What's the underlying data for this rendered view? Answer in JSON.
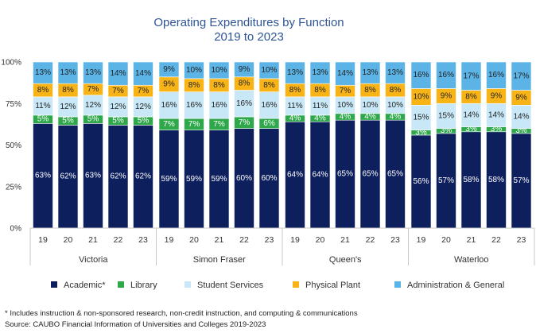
{
  "chart_data": {
    "type": "bar",
    "stacked": true,
    "title": "Operating Expenditures by Function",
    "subtitle": "2019 to 2023",
    "ylim": [
      0,
      100
    ],
    "yticks": [
      "0%",
      "25%",
      "50%",
      "75%",
      "100%"
    ],
    "groups": [
      "Victoria",
      "Simon Fraser",
      "Queen's",
      "Waterloo"
    ],
    "categories": [
      "19",
      "20",
      "21",
      "22",
      "23"
    ],
    "legend_position": "bottom",
    "series": [
      {
        "name": "Academic*",
        "color": "#0d1f5c",
        "label_color": "#ffffff",
        "values": [
          [
            63,
            62,
            63,
            62,
            62
          ],
          [
            59,
            59,
            59,
            60,
            60
          ],
          [
            64,
            64,
            65,
            65,
            65
          ],
          [
            56,
            57,
            58,
            58,
            57
          ]
        ]
      },
      {
        "name": "Library",
        "color": "#2ea84a",
        "label_color": "#ffffff",
        "values": [
          [
            5,
            5,
            5,
            5,
            5
          ],
          [
            7,
            7,
            7,
            7,
            6
          ],
          [
            4,
            4,
            4,
            4,
            4
          ],
          [
            3,
            3,
            3,
            3,
            3
          ]
        ]
      },
      {
        "name": "Student Services",
        "color": "#c9e8f7",
        "label_color": "#222222",
        "values": [
          [
            11,
            12,
            12,
            12,
            12
          ],
          [
            16,
            16,
            16,
            16,
            16
          ],
          [
            11,
            11,
            10,
            10,
            10
          ],
          [
            15,
            15,
            14,
            14,
            14
          ]
        ]
      },
      {
        "name": "Physical Plant",
        "color": "#f8b417",
        "label_color": "#222222",
        "values": [
          [
            8,
            8,
            7,
            7,
            7
          ],
          [
            9,
            8,
            8,
            8,
            8
          ],
          [
            8,
            8,
            7,
            8,
            8
          ],
          [
            10,
            9,
            8,
            9,
            9
          ]
        ]
      },
      {
        "name": "Administration & General",
        "color": "#5bb3e6",
        "label_color": "#222222",
        "values": [
          [
            13,
            13,
            13,
            14,
            14
          ],
          [
            9,
            10,
            10,
            9,
            10
          ],
          [
            13,
            13,
            14,
            13,
            13
          ],
          [
            16,
            16,
            17,
            16,
            17
          ]
        ]
      }
    ]
  },
  "footnotes": {
    "note": "* Includes instruction & non-sponsored research, non-credit instruction, and computing & communications",
    "source": "Source: CAUBO Financial Information of Universities and Colleges 2019-2023"
  }
}
